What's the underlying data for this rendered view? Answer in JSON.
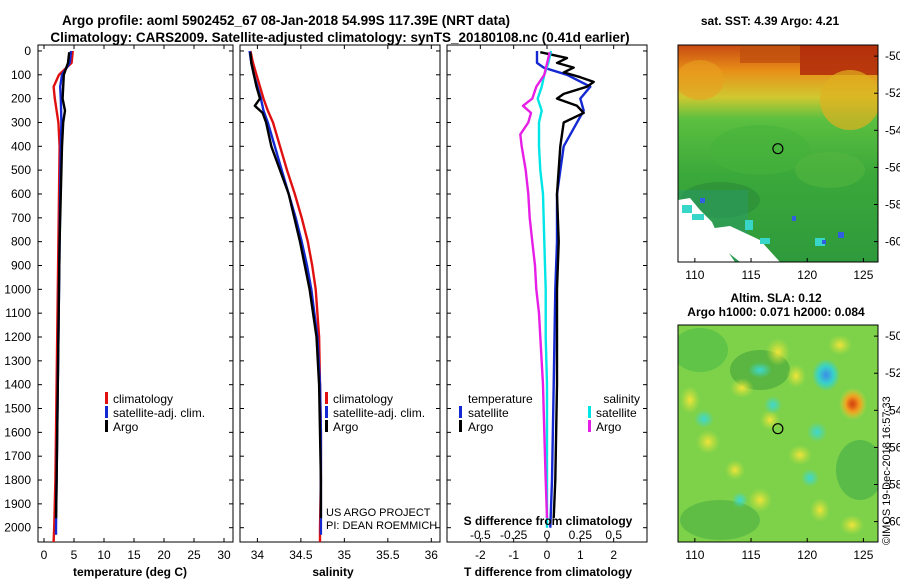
{
  "header": {
    "title1": "Argo profile: aoml 5902452_67 08-Jan-2018 54.99S 117.39E (NRT data)",
    "title2": "Climatology: CARS2009. Satellite-adjusted climatology: synTS_20180108.nc (0.41d earlier)"
  },
  "colors": {
    "climatology": "#e01010",
    "satellite_adj": "#1428d2",
    "argo": "#000000",
    "s_satellite": "#00e6e6",
    "s_argo": "#e61ee6"
  },
  "legend": {
    "climatology": "climatology",
    "satellite_adj": "satellite-adj. clim.",
    "argo": "Argo",
    "diff_temperature": "temperature",
    "diff_salinity": "salinity",
    "diff_satellite": "satellite",
    "diff_argo": "Argo"
  },
  "credits": {
    "line1": "US ARGO PROJECT",
    "line2": "PI: DEAN ROEMMICH"
  },
  "maps": {
    "sst_title": "sat. SST: 4.39 Argo: 4.21",
    "sla_title1": "Altim. SLA: 0.12",
    "sla_title2": "Argo h1000: 0.071 h2000: 0.084",
    "stamp": "©IMOS 19-Dec-2018 16:57:33",
    "lon_ticks": [
      "110",
      "115",
      "120",
      "125"
    ],
    "lat_ticks": [
      "-50",
      "-52",
      "-54",
      "-56",
      "-58",
      "-60"
    ],
    "float_lon": 117.39,
    "float_lat": -54.99
  },
  "chart_data": [
    {
      "type": "line",
      "name": "temperature",
      "xlabel": "temperature (deg C)",
      "ylabel": "",
      "xlim": [
        -1,
        31.5
      ],
      "ylim": [
        2060,
        0
      ],
      "xticks": [
        "0",
        "5",
        "10",
        "15",
        "20",
        "25",
        "30"
      ],
      "yticks": [
        "0",
        "100",
        "200",
        "300",
        "400",
        "500",
        "600",
        "700",
        "800",
        "900",
        "1000",
        "1100",
        "1200",
        "1300",
        "1400",
        "1500",
        "1600",
        "1700",
        "1800",
        "1900",
        "2000"
      ],
      "series": [
        {
          "name": "climatology",
          "color": "#e01010",
          "depth": [
            0,
            50,
            100,
            150,
            200,
            300,
            400,
            600,
            800,
            1000,
            1200,
            1400,
            1600,
            1800,
            2000,
            2060
          ],
          "values": [
            4.8,
            4.6,
            2.5,
            1.6,
            1.8,
            2.4,
            2.6,
            2.5,
            2.4,
            2.3,
            2.2,
            2.1,
            2.0,
            1.9,
            1.7,
            1.6
          ]
        },
        {
          "name": "satellite-adj. clim.",
          "color": "#1428d2",
          "depth": [
            0,
            50,
            100,
            150,
            200,
            300,
            400,
            600,
            800,
            1000,
            1200,
            1400,
            1600,
            1800,
            2000,
            2030
          ],
          "values": [
            4.5,
            4.3,
            3.0,
            2.7,
            2.8,
            2.9,
            2.8,
            2.7,
            2.6,
            2.5,
            2.4,
            2.3,
            2.2,
            2.1,
            2.0,
            2.0
          ]
        },
        {
          "name": "Argo",
          "color": "#000000",
          "depth": [
            5,
            50,
            100,
            150,
            200,
            250,
            300,
            400,
            500,
            600,
            800,
            1000,
            1200,
            1400,
            1600,
            1800,
            1960
          ],
          "values": [
            4.2,
            4.0,
            3.3,
            3.2,
            3.1,
            3.5,
            3.2,
            3.0,
            2.9,
            2.8,
            2.6,
            2.5,
            2.4,
            2.3,
            2.2,
            2.1,
            2.0
          ]
        }
      ]
    },
    {
      "type": "line",
      "name": "salinity",
      "xlabel": "salinity",
      "ylabel": "",
      "xlim": [
        33.8,
        36.1
      ],
      "ylim": [
        2060,
        0
      ],
      "xticks": [
        "34",
        "34.5",
        "35",
        "35.5",
        "36"
      ],
      "series": [
        {
          "name": "climatology",
          "color": "#e01010",
          "depth": [
            0,
            50,
            100,
            150,
            200,
            250,
            300,
            400,
            500,
            600,
            700,
            800,
            900,
            1000,
            1200,
            1400,
            1600,
            1800,
            2000,
            2060
          ],
          "values": [
            33.92,
            33.95,
            33.99,
            34.03,
            34.07,
            34.12,
            34.18,
            34.26,
            34.34,
            34.43,
            34.51,
            34.58,
            34.63,
            34.67,
            34.71,
            34.72,
            34.73,
            34.73,
            34.72,
            34.72
          ]
        },
        {
          "name": "satellite-adj. clim.",
          "color": "#1428d2",
          "depth": [
            0,
            50,
            100,
            150,
            200,
            250,
            300,
            400,
            500,
            600,
            700,
            800,
            900,
            1000,
            1200,
            1400,
            1600,
            1800,
            2000,
            2030
          ],
          "values": [
            33.91,
            33.93,
            33.96,
            34.0,
            34.04,
            34.07,
            34.12,
            34.2,
            34.28,
            34.36,
            34.44,
            34.51,
            34.57,
            34.62,
            34.69,
            34.72,
            34.73,
            34.73,
            34.73,
            34.73
          ]
        },
        {
          "name": "Argo",
          "color": "#000000",
          "depth": [
            5,
            50,
            100,
            150,
            200,
            230,
            260,
            300,
            400,
            500,
            600,
            800,
            1000,
            1200,
            1400,
            1600,
            1800,
            1960
          ],
          "values": [
            33.92,
            33.93,
            33.96,
            33.99,
            34.03,
            33.97,
            34.06,
            34.1,
            34.16,
            34.26,
            34.36,
            34.49,
            34.6,
            34.68,
            34.71,
            34.72,
            34.73,
            34.73
          ]
        }
      ]
    },
    {
      "type": "line",
      "name": "difference",
      "xlabel": "T difference from climatology",
      "xlabel2": "S difference from climatology",
      "xlim": [
        -3,
        3
      ],
      "ylim": [
        2060,
        0
      ],
      "xticks": [
        "-2",
        "-1",
        "0",
        "1",
        "2"
      ],
      "xticks_s": [
        "-0.5",
        "-0.25",
        "0",
        "0.25",
        "0.5"
      ],
      "series": [
        {
          "name": "T satellite",
          "color": "#1428d2",
          "depth": [
            0,
            50,
            70,
            100,
            150,
            200,
            250,
            300,
            400,
            600,
            800,
            1000,
            1400,
            1800,
            2000
          ],
          "values": [
            -0.3,
            -0.3,
            -0.1,
            0.6,
            1.3,
            1.0,
            1.1,
            0.9,
            0.5,
            0.3,
            0.3,
            0.25,
            0.2,
            0.15,
            0.1
          ]
        },
        {
          "name": "T Argo",
          "color": "#000000",
          "depth": [
            5,
            30,
            50,
            70,
            90,
            110,
            130,
            150,
            180,
            200,
            230,
            260,
            300,
            400,
            600,
            800,
            1000,
            1400,
            1800,
            1960
          ],
          "values": [
            -0.2,
            0.6,
            0.3,
            0.8,
            0.5,
            1.0,
            1.4,
            1.2,
            0.5,
            0.3,
            0.9,
            1.1,
            0.5,
            0.4,
            0.3,
            0.35,
            0.3,
            0.3,
            0.25,
            0.2
          ]
        },
        {
          "name": "S satellite",
          "color": "#00e6e6",
          "depth": [
            0,
            50,
            100,
            150,
            200,
            250,
            300,
            400,
            500,
            600,
            800,
            1000,
            1200,
            1400,
            1600,
            1800,
            2000
          ],
          "values": [
            0.03,
            0.01,
            -0.02,
            -0.04,
            -0.07,
            -0.04,
            -0.06,
            -0.06,
            -0.05,
            -0.03,
            -0.02,
            -0.01,
            -0.01,
            0.0,
            0.0,
            0.0,
            0.0
          ]
        },
        {
          "name": "S Argo",
          "color": "#e61ee6",
          "depth": [
            5,
            100,
            150,
            200,
            230,
            260,
            300,
            350,
            400,
            500,
            600,
            700,
            800,
            900,
            1000,
            1100,
            1200,
            1400,
            1600,
            1800,
            1960
          ],
          "values": [
            0.02,
            -0.02,
            -0.08,
            -0.11,
            -0.18,
            -0.12,
            -0.14,
            -0.2,
            -0.19,
            -0.16,
            -0.14,
            -0.13,
            -0.11,
            -0.09,
            -0.08,
            -0.06,
            -0.05,
            -0.03,
            -0.02,
            -0.01,
            0.0
          ]
        }
      ]
    }
  ]
}
